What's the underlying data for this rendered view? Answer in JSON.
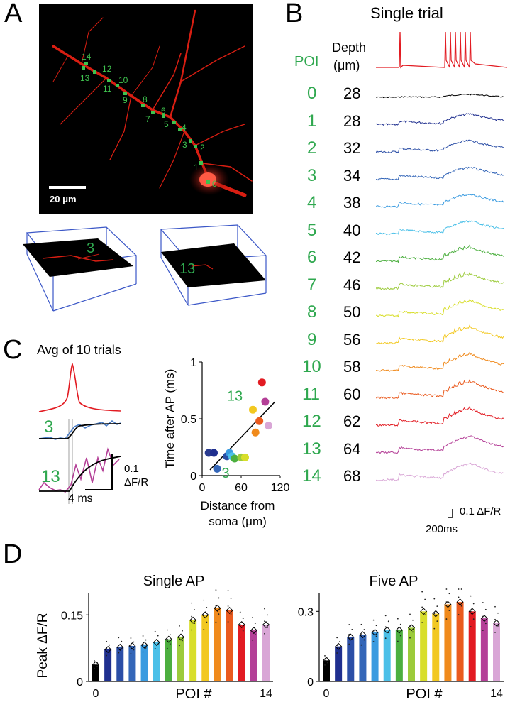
{
  "panels": {
    "a": "A",
    "b": "B",
    "c": "C",
    "d": "D"
  },
  "panel_a": {
    "scale_bar_label": "20 μm",
    "poi_labels": [
      "0",
      "1",
      "2",
      "3",
      "4",
      "5",
      "6",
      "7",
      "8",
      "9",
      "10",
      "11",
      "12",
      "13",
      "14"
    ],
    "inset_labels": [
      "3",
      "13"
    ]
  },
  "panel_b": {
    "title": "Single trial",
    "poi_header": "POI",
    "depth_header": "Depth",
    "depth_unit": "(μm)",
    "rows": [
      {
        "poi": "0",
        "depth": "28",
        "color": "#000000"
      },
      {
        "poi": "1",
        "depth": "28",
        "color": "#1f2f8f"
      },
      {
        "poi": "2",
        "depth": "32",
        "color": "#2b4ea6"
      },
      {
        "poi": "3",
        "depth": "34",
        "color": "#3466b8"
      },
      {
        "poi": "4",
        "depth": "38",
        "color": "#3a9be0"
      },
      {
        "poi": "5",
        "depth": "40",
        "color": "#4bc0e8"
      },
      {
        "poi": "6",
        "depth": "42",
        "color": "#4caf3f"
      },
      {
        "poi": "7",
        "depth": "46",
        "color": "#9ccb3b"
      },
      {
        "poi": "8",
        "depth": "50",
        "color": "#d8de2a"
      },
      {
        "poi": "9",
        "depth": "56",
        "color": "#f2c820"
      },
      {
        "poi": "10",
        "depth": "58",
        "color": "#f08a1c"
      },
      {
        "poi": "11",
        "depth": "60",
        "color": "#ea5a1e"
      },
      {
        "poi": "12",
        "depth": "62",
        "color": "#e21b22"
      },
      {
        "poi": "13",
        "depth": "64",
        "color": "#b43f97"
      },
      {
        "poi": "14",
        "depth": "68",
        "color": "#d9a6d6"
      }
    ],
    "scale_y": "0.1 ΔF/R",
    "scale_x": "200ms"
  },
  "panel_c": {
    "title": "Avg of 10 trials",
    "label_3": "3",
    "label_13": "13",
    "scale_y_1": "0.1",
    "scale_y_2": "ΔF/R",
    "scale_x": "4 ms"
  },
  "chart_data": [
    {
      "type": "scatter",
      "title": "",
      "xlabel": "Distance from soma (μm)",
      "xlabel_line1": "Distance from",
      "xlabel_line2": "soma (μm)",
      "ylabel": "Time after AP (ms)",
      "xlim": [
        0,
        120
      ],
      "ylim": [
        0,
        1
      ],
      "xticks": [
        "0",
        "60",
        "120"
      ],
      "yticks": [
        "0",
        "0.5",
        "1"
      ],
      "annotations": [
        "13",
        "3"
      ],
      "points": [
        {
          "poi": 0,
          "x": 10,
          "y": 0.2
        },
        {
          "poi": 1,
          "x": 18,
          "y": 0.2
        },
        {
          "poi": 2,
          "x": 38,
          "y": 0.17
        },
        {
          "poi": 3,
          "x": 23,
          "y": 0.06
        },
        {
          "poi": 4,
          "x": 42,
          "y": 0.2
        },
        {
          "poi": 5,
          "x": 46,
          "y": 0.17
        },
        {
          "poi": 6,
          "x": 50,
          "y": 0.15
        },
        {
          "poi": 7,
          "x": 60,
          "y": 0.16
        },
        {
          "poi": 8,
          "x": 66,
          "y": 0.16
        },
        {
          "poi": 9,
          "x": 78,
          "y": 0.58
        },
        {
          "poi": 10,
          "x": 82,
          "y": 0.38
        },
        {
          "poi": 11,
          "x": 88,
          "y": 0.48
        },
        {
          "poi": 12,
          "x": 92,
          "y": 0.82
        },
        {
          "poi": 13,
          "x": 97,
          "y": 0.65
        },
        {
          "poi": 14,
          "x": 102,
          "y": 0.44
        }
      ],
      "fit_line": {
        "x": [
          12,
          112
        ],
        "y": [
          0.05,
          0.65
        ]
      }
    },
    {
      "type": "bar",
      "title": "Single AP",
      "xlabel": "POI #",
      "ylabel": "Peak ΔF/R",
      "ylim": [
        0,
        0.2
      ],
      "yticks": [
        "0",
        "0.15"
      ],
      "xticks": [
        "0",
        "14"
      ],
      "categories": [
        "0",
        "1",
        "2",
        "3",
        "4",
        "5",
        "6",
        "7",
        "8",
        "9",
        "10",
        "11",
        "12",
        "13",
        "14"
      ],
      "values": [
        0.038,
        0.072,
        0.077,
        0.08,
        0.082,
        0.088,
        0.095,
        0.1,
        0.138,
        0.15,
        0.165,
        0.16,
        0.128,
        0.115,
        0.128
      ]
    },
    {
      "type": "bar",
      "title": "Five AP",
      "xlabel": "POI #",
      "ylabel": "",
      "ylim": [
        0,
        0.38
      ],
      "yticks": [
        "0",
        "0.3"
      ],
      "xticks": [
        "0",
        "14"
      ],
      "categories": [
        "0",
        "1",
        "2",
        "3",
        "4",
        "5",
        "6",
        "7",
        "8",
        "9",
        "10",
        "11",
        "12",
        "13",
        "14"
      ],
      "values": [
        0.09,
        0.15,
        0.19,
        0.2,
        0.21,
        0.22,
        0.22,
        0.23,
        0.3,
        0.29,
        0.33,
        0.34,
        0.3,
        0.27,
        0.25
      ]
    }
  ]
}
